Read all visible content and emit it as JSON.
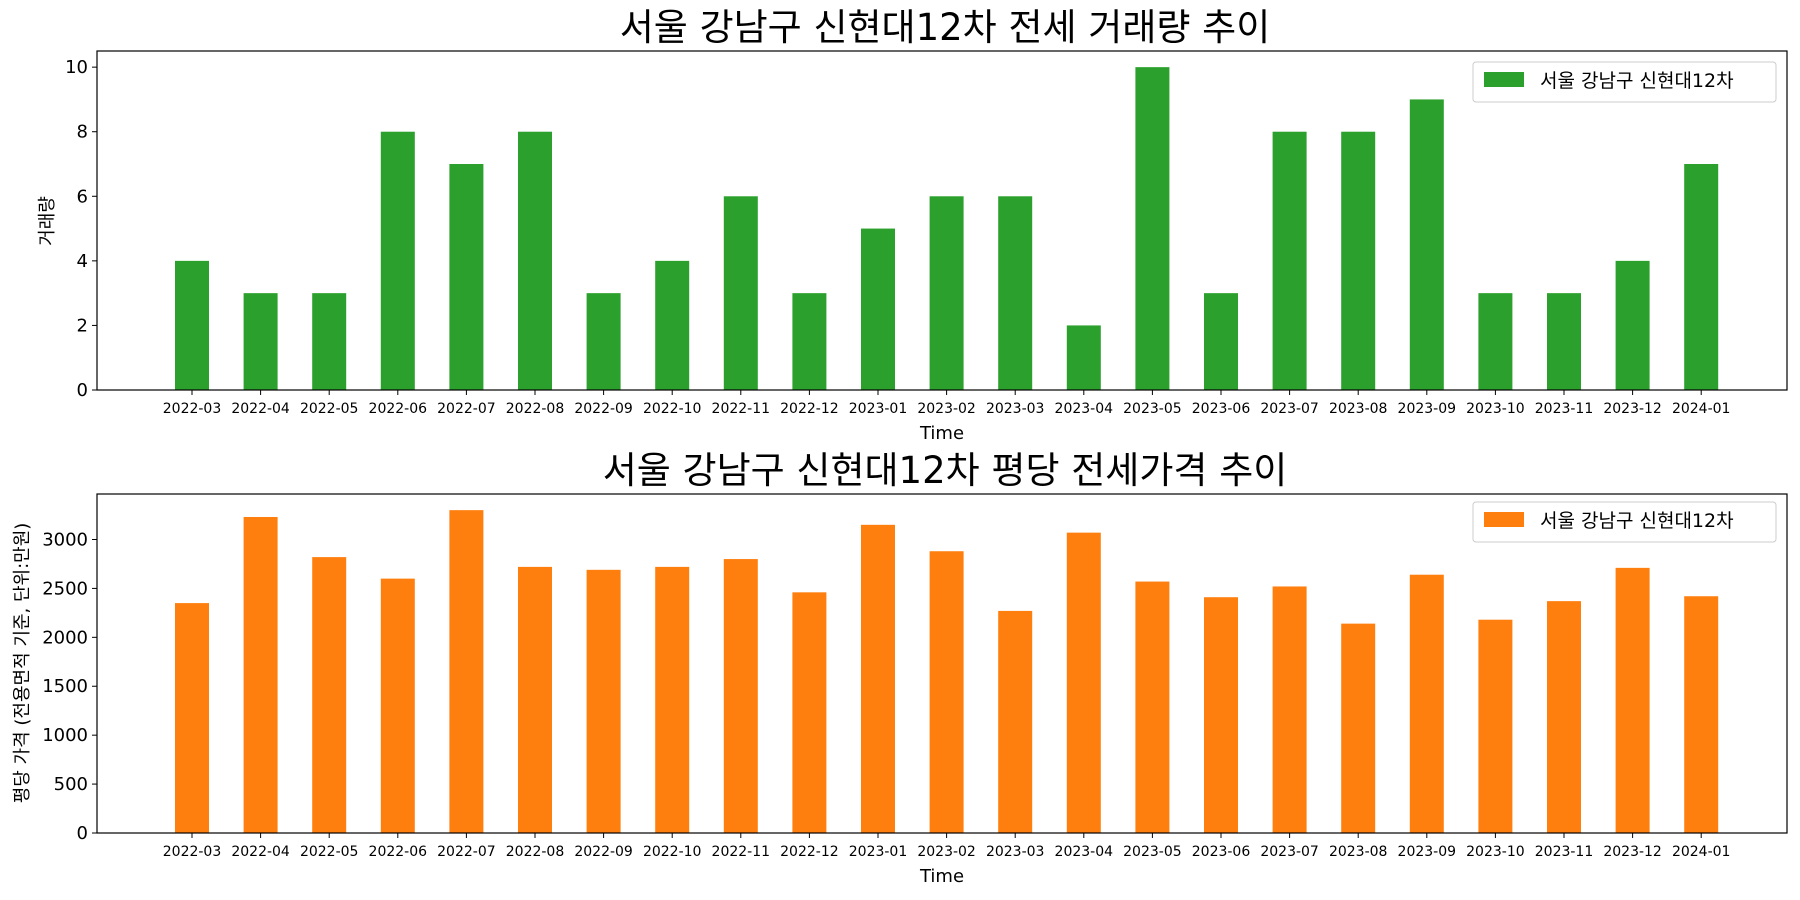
{
  "chart_data": [
    {
      "type": "bar",
      "title": "서울 강남구 신현대12차 전세 거래량 추이",
      "xlabel": "Time",
      "ylabel": "거래량",
      "categories": [
        "2022-03",
        "2022-04",
        "2022-05",
        "2022-06",
        "2022-07",
        "2022-08",
        "2022-09",
        "2022-10",
        "2022-11",
        "2022-12",
        "2023-01",
        "2023-02",
        "2023-03",
        "2023-04",
        "2023-05",
        "2023-06",
        "2023-07",
        "2023-08",
        "2023-09",
        "2023-10",
        "2023-11",
        "2023-12",
        "2024-01"
      ],
      "series": [
        {
          "name": "서울 강남구 신현대12차",
          "color": "#2ca02c",
          "values": [
            4,
            3,
            3,
            8,
            7,
            8,
            3,
            4,
            6,
            3,
            5,
            6,
            6,
            2,
            10,
            3,
            8,
            8,
            9,
            3,
            3,
            4,
            7
          ]
        }
      ],
      "ylim": [
        0,
        10.5
      ],
      "yticks": [
        0,
        2,
        4,
        6,
        8,
        10
      ],
      "legend": "top-right",
      "grid": false
    },
    {
      "type": "bar",
      "title": "서울 강남구 신현대12차 평당 전세가격 추이",
      "xlabel": "Time",
      "ylabel": "평당 가격 (전용면적 기준, 단위:만원)",
      "categories": [
        "2022-03",
        "2022-04",
        "2022-05",
        "2022-06",
        "2022-07",
        "2022-08",
        "2022-09",
        "2022-10",
        "2022-11",
        "2022-12",
        "2023-01",
        "2023-02",
        "2023-03",
        "2023-04",
        "2023-05",
        "2023-06",
        "2023-07",
        "2023-08",
        "2023-09",
        "2023-10",
        "2023-11",
        "2023-12",
        "2024-01"
      ],
      "series": [
        {
          "name": "서울 강남구 신현대12차",
          "color": "#ff7f0e",
          "values": [
            2350,
            3230,
            2820,
            2600,
            3300,
            2720,
            2690,
            2720,
            2800,
            2460,
            3150,
            2880,
            2270,
            3070,
            2570,
            2410,
            2520,
            2140,
            2640,
            2180,
            2370,
            2710,
            2420
          ]
        }
      ],
      "ylim": [
        0,
        3465
      ],
      "yticks": [
        0,
        500,
        1000,
        1500,
        2000,
        2500,
        3000
      ],
      "legend": "top-right",
      "grid": false
    }
  ]
}
